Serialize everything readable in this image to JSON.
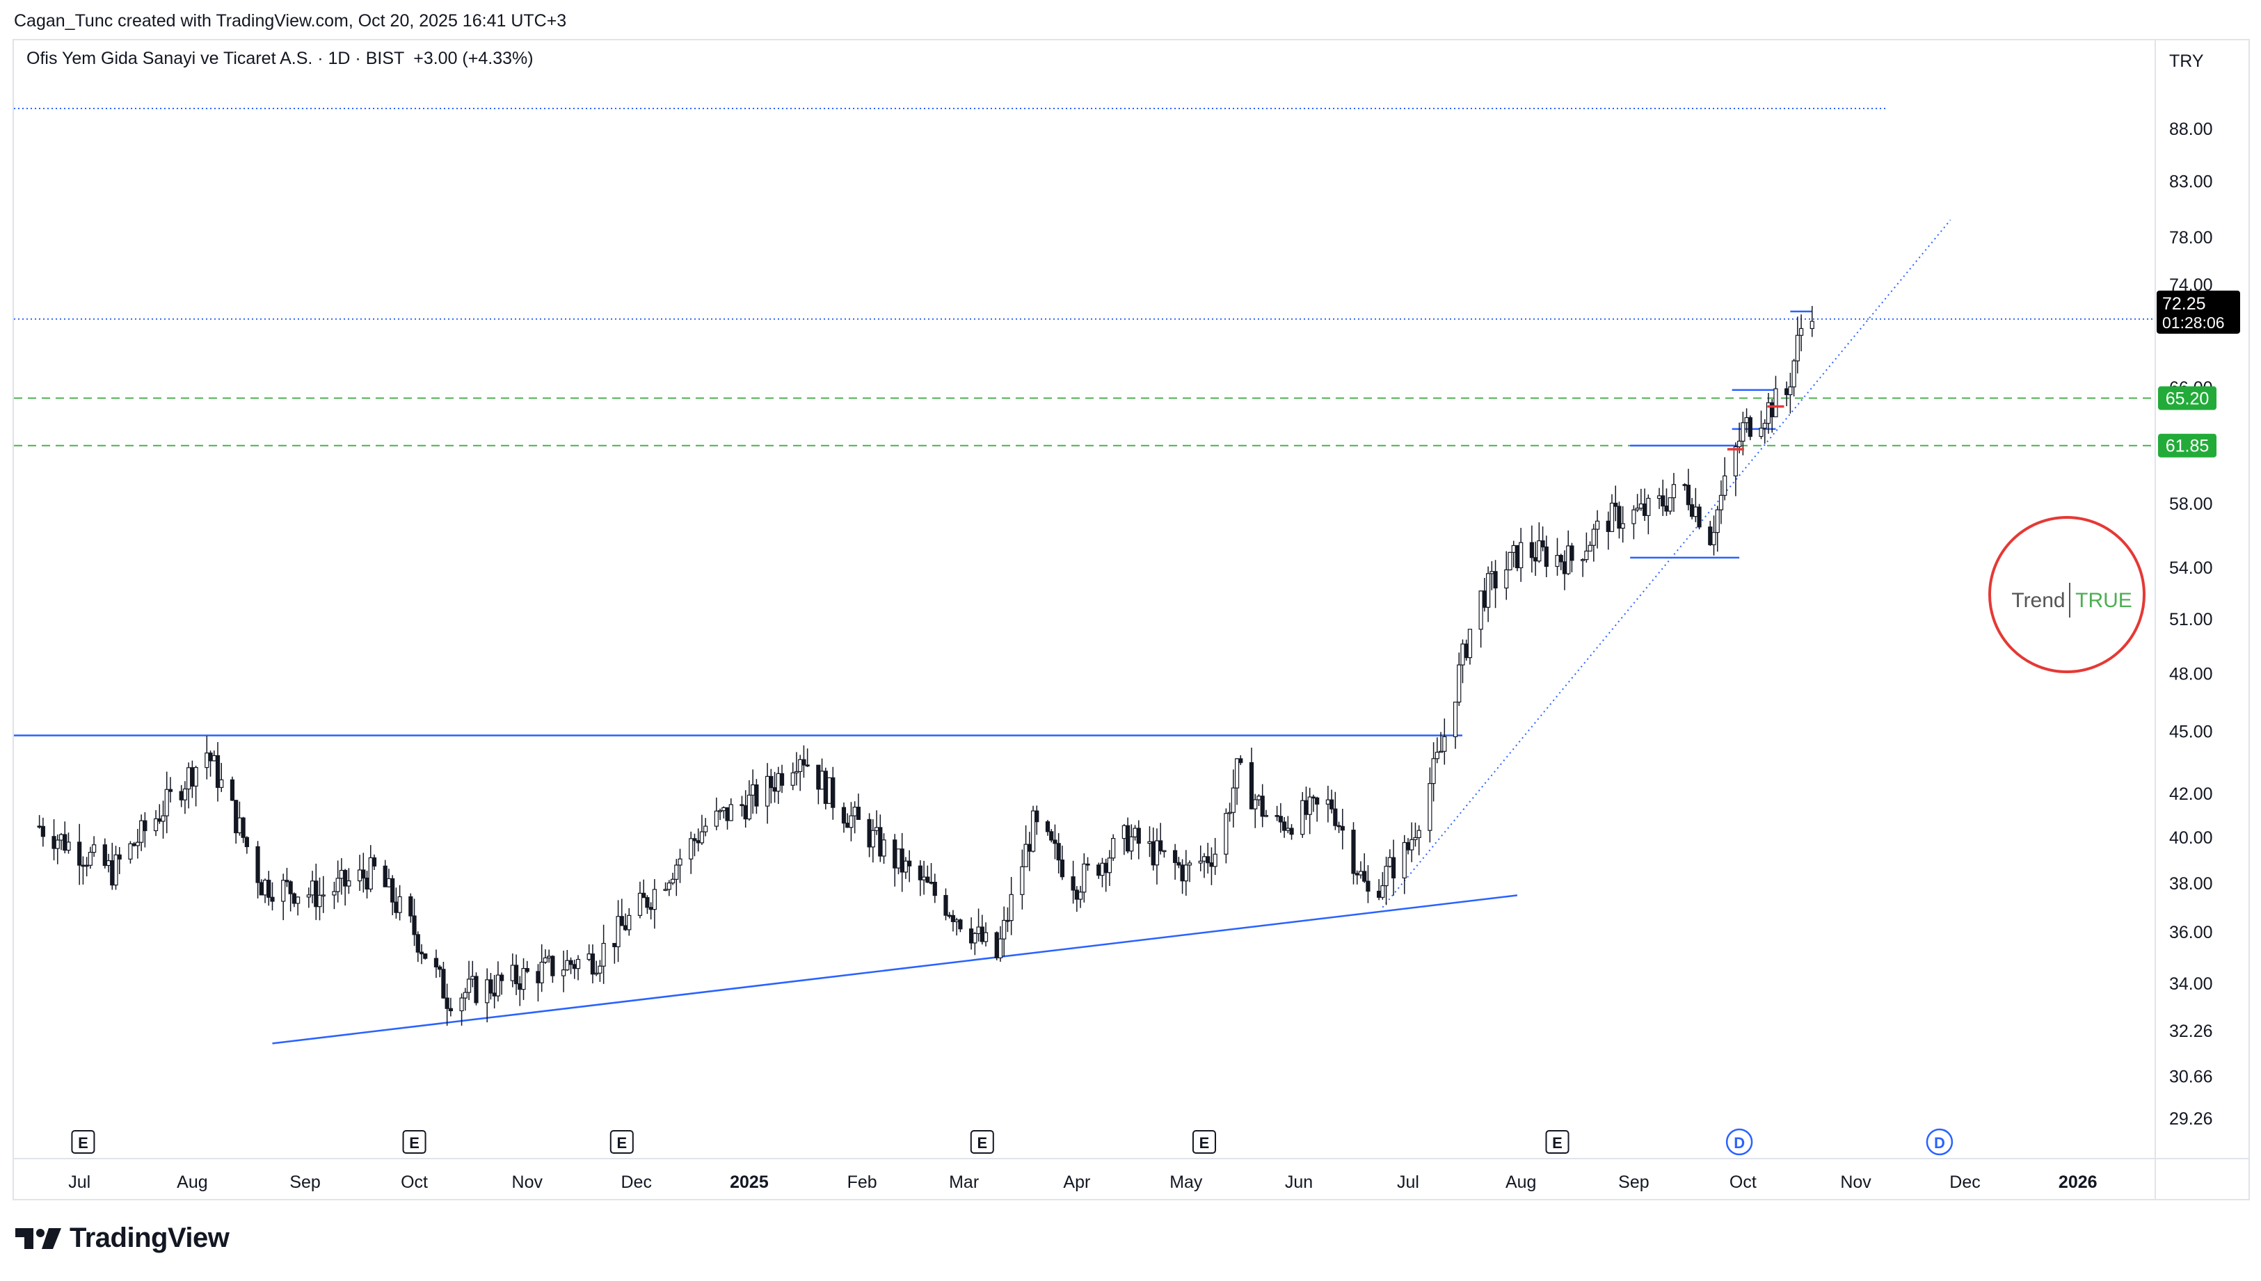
{
  "credit": "Cagan_Tunc created with TradingView.com, Oct 20, 2025 16:41 UTC+3",
  "legend": {
    "symbol": "Ofis Yem Gida Sanayi ve Ticaret A.S. · 1D · BIST",
    "change": "+3.00 (+4.33%)"
  },
  "currency": "TRY",
  "brand": "TradingView",
  "colors": {
    "up": "#ffffff",
    "down": "#131722",
    "trendline": "#2962ff",
    "support_dashed": "#4caf50",
    "resistance_dotted": "#2962ff",
    "badge_green": "#22ab38",
    "price_badge": "#000000",
    "circle": "#e53935",
    "trend_true": "#4caf50"
  },
  "chart_data": {
    "type": "candlestick",
    "title": "Ofis Yem Gida Sanayi ve Ticaret A.S. · 1D · BIST",
    "scale": "log",
    "ylim": [
      28,
      92
    ],
    "y_ticks": [
      "88.00",
      "83.00",
      "78.00",
      "74.00",
      "66.00",
      "58.00",
      "54.00",
      "51.00",
      "48.00",
      "45.00",
      "42.00",
      "40.00",
      "38.00",
      "36.00",
      "34.00",
      "32.26",
      "30.66",
      "29.26"
    ],
    "x_ticks": [
      "Jul",
      "Aug",
      "Sep",
      "Oct",
      "Nov",
      "Dec",
      "2025",
      "Feb",
      "Mar",
      "Apr",
      "May",
      "Jun",
      "Jul",
      "Aug",
      "Sep",
      "Oct",
      "Nov",
      "Dec",
      "2026"
    ],
    "bold_x_ticks": [
      "2025",
      "2026"
    ],
    "last_price": "72.25",
    "countdown": "01:28:06",
    "price_levels": [
      {
        "price": 90.0,
        "style": "dotted",
        "label": ""
      },
      {
        "price": 71.2,
        "style": "dotted",
        "label": ""
      },
      {
        "price": 65.2,
        "style": "dashed",
        "label": "65.20"
      },
      {
        "price": 61.85,
        "style": "dashed",
        "label": "61.85"
      },
      {
        "price": 44.8,
        "style": "solid",
        "label": ""
      }
    ],
    "price_path": [
      [
        "2024-06-20",
        40.5
      ],
      [
        "2024-07-10",
        38.5
      ],
      [
        "2024-07-25",
        41.5
      ],
      [
        "2024-08-05",
        44.0
      ],
      [
        "2024-08-20",
        38.0
      ],
      [
        "2024-09-05",
        37.5
      ],
      [
        "2024-09-20",
        38.5
      ],
      [
        "2024-10-01",
        36.0
      ],
      [
        "2024-10-10",
        33.5
      ],
      [
        "2024-10-25",
        34.0
      ],
      [
        "2024-11-05",
        34.5
      ],
      [
        "2024-11-20",
        35.0
      ],
      [
        "2024-12-05",
        37.5
      ],
      [
        "2024-12-20",
        40.5
      ],
      [
        "2025-01-05",
        42.0
      ],
      [
        "2025-01-15",
        44.0
      ],
      [
        "2025-01-25",
        41.5
      ],
      [
        "2025-02-10",
        39.0
      ],
      [
        "2025-02-25",
        37.0
      ],
      [
        "2025-03-10",
        35.0
      ],
      [
        "2025-03-20",
        40.5
      ],
      [
        "2025-04-01",
        38.0
      ],
      [
        "2025-04-15",
        40.0
      ],
      [
        "2025-05-01",
        38.5
      ],
      [
        "2025-05-10",
        39.5
      ],
      [
        "2025-05-15",
        43.0
      ],
      [
        "2025-05-25",
        40.5
      ],
      [
        "2025-06-10",
        41.5
      ],
      [
        "2025-06-20",
        37.5
      ],
      [
        "2025-07-01",
        39.5
      ],
      [
        "2025-07-10",
        44.0
      ],
      [
        "2025-07-20",
        52.0
      ],
      [
        "2025-08-01",
        55.0
      ],
      [
        "2025-08-15",
        54.5
      ],
      [
        "2025-08-25",
        57.0
      ],
      [
        "2025-09-05",
        57.5
      ],
      [
        "2025-09-15",
        59.0
      ],
      [
        "2025-09-22",
        56.0
      ],
      [
        "2025-10-01",
        63.0
      ],
      [
        "2025-10-08",
        64.5
      ],
      [
        "2025-10-13",
        65.5
      ],
      [
        "2025-10-17",
        70.5
      ],
      [
        "2025-10-20",
        72.25
      ]
    ],
    "trendlines": [
      {
        "from": [
          "2024-08-23",
          31.8
        ],
        "to": [
          "2025-07-31",
          37.5
        ],
        "style": "solid"
      },
      {
        "from": [
          "2025-06-24",
          37.0
        ],
        "to": [
          "2025-11-27",
          79.5
        ],
        "style": "dotted"
      }
    ],
    "range_boxes": [
      {
        "from": "2025-08-31",
        "to": "2025-09-30",
        "high": 61.85,
        "low": 54.6
      },
      {
        "from": "2025-09-28",
        "to": "2025-10-10",
        "high": 65.8,
        "low": 63.0
      },
      {
        "from": "2025-10-14",
        "to": "2025-10-20",
        "high": 71.8,
        "low": 71.8
      }
    ],
    "event_markers": [
      {
        "date": "2024-07-02",
        "label": "E"
      },
      {
        "date": "2024-10-01",
        "label": "E"
      },
      {
        "date": "2024-11-27",
        "label": "E"
      },
      {
        "date": "2025-03-06",
        "label": "E"
      },
      {
        "date": "2025-05-06",
        "label": "E"
      },
      {
        "date": "2025-08-11",
        "label": "E"
      },
      {
        "date": "2025-09-30",
        "label": "D"
      },
      {
        "date": "2025-11-24",
        "label": "D"
      }
    ],
    "indicator": {
      "label": "Trend",
      "value": "TRUE"
    }
  }
}
